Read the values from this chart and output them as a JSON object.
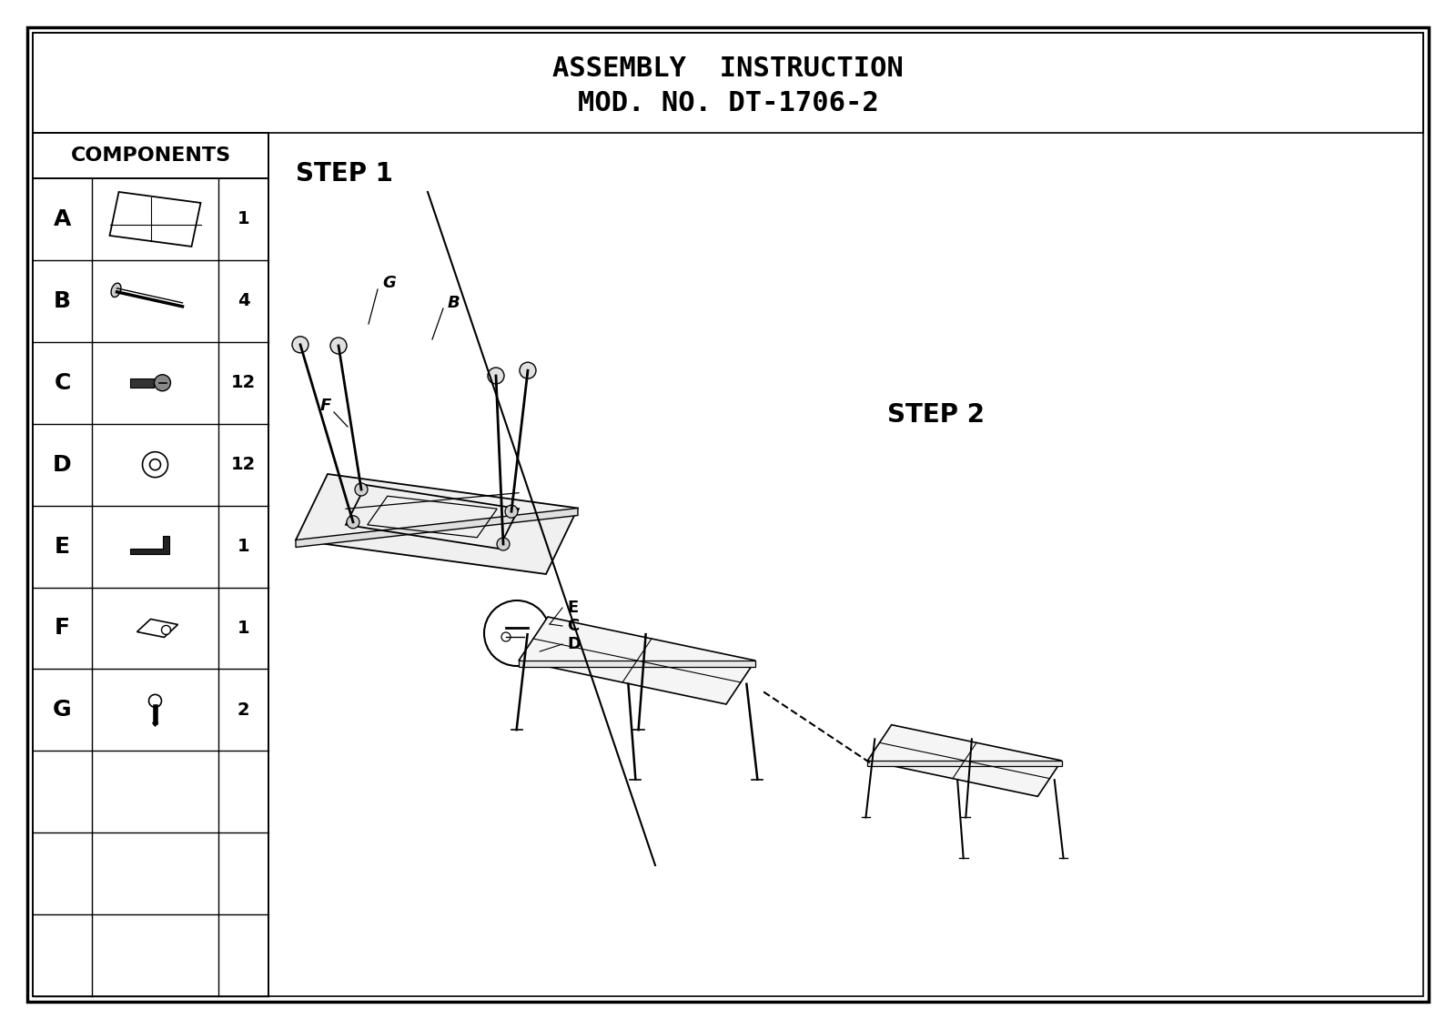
{
  "title_line1": "ASSEMBLY  INSTRUCTION",
  "title_line2": "MOD. NO. DT-1706-2",
  "bg_color": "#ffffff",
  "border_color": "#000000",
  "components_header": "COMPONENTS",
  "components": [
    {
      "label": "A",
      "qty": "1"
    },
    {
      "label": "B",
      "qty": "4"
    },
    {
      "label": "C",
      "qty": "12"
    },
    {
      "label": "D",
      "qty": "12"
    },
    {
      "label": "E",
      "qty": "1"
    },
    {
      "label": "F",
      "qty": "1"
    },
    {
      "label": "G",
      "qty": "2"
    },
    {
      "label": "",
      "qty": ""
    },
    {
      "label": "",
      "qty": ""
    },
    {
      "label": "",
      "qty": ""
    }
  ],
  "step1_label": "STEP 1",
  "step2_label": "STEP 2"
}
